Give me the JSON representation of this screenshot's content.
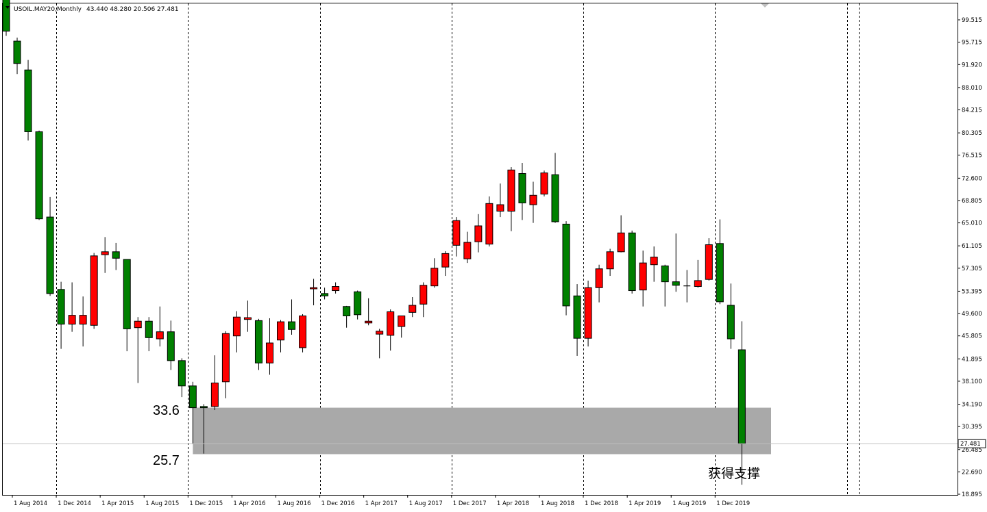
{
  "chart_data": {
    "type": "candlestick",
    "title": "USOIL.MAY20,Monthly",
    "ohlc_readout": "43.440 48.280 20.506 27.481",
    "last_price_label": "27.481",
    "ylim": [
      18.0,
      101.5
    ],
    "y_ticks": [
      "99.515",
      "95.715",
      "91.920",
      "88.010",
      "84.215",
      "80.305",
      "76.515",
      "72.600",
      "68.805",
      "65.010",
      "61.105",
      "57.305",
      "53.395",
      "49.600",
      "45.805",
      "41.895",
      "38.100",
      "34.190",
      "30.395",
      "26.485",
      "22.690",
      "18.895"
    ],
    "x_ticks": [
      "1 Aug 2014",
      "1 Dec 2014",
      "1 Apr 2015",
      "1 Aug 2015",
      "1 Dec 2015",
      "1 Apr 2016",
      "1 Aug 2016",
      "1 Dec 2016",
      "1 Apr 2017",
      "1 Aug 2017",
      "1 Dec 2017",
      "1 Apr 2018",
      "1 Aug 2018",
      "1 Dec 2018",
      "1 Apr 2019",
      "1 Aug 2019",
      "1 Dec 2019"
    ],
    "grid": "vertical dashed separators every 12 months",
    "bull_color": "#ff0000",
    "bear_color": "#008000",
    "support_zone": {
      "low": 25.7,
      "high": 33.6,
      "low_label": "25.7",
      "high_label": "33.6",
      "color": "#a9a9a9",
      "start": "Jan 2016",
      "end": "Apr 2020"
    },
    "annotation": "获得支撑",
    "candles": [
      {
        "d": "Jul 2014",
        "o": 104.0,
        "h": 105.5,
        "l": 96.8,
        "c": 97.6
      },
      {
        "d": "Aug 2014",
        "o": 95.9,
        "h": 96.5,
        "l": 90.3,
        "c": 92.1
      },
      {
        "d": "Sep 2014",
        "o": 91.0,
        "h": 92.7,
        "l": 79.0,
        "c": 80.5
      },
      {
        "d": "Oct 2014",
        "o": 80.5,
        "h": 80.7,
        "l": 65.5,
        "c": 65.7
      },
      {
        "d": "Nov 2014",
        "o": 66.0,
        "h": 69.4,
        "l": 52.6,
        "c": 53.0
      },
      {
        "d": "Dec 2014",
        "o": 53.7,
        "h": 55.0,
        "l": 43.6,
        "c": 47.8
      },
      {
        "d": "Jan 2015",
        "o": 47.8,
        "h": 54.9,
        "l": 46.5,
        "c": 49.3
      },
      {
        "d": "Feb 2015",
        "o": 47.8,
        "h": 52.5,
        "l": 44.0,
        "c": 49.3
      },
      {
        "d": "Mar 2015",
        "o": 47.6,
        "h": 59.9,
        "l": 47.0,
        "c": 59.4
      },
      {
        "d": "Apr 2015",
        "o": 59.6,
        "h": 62.6,
        "l": 56.5,
        "c": 60.1
      },
      {
        "d": "May 2015",
        "o": 60.1,
        "h": 61.6,
        "l": 57.0,
        "c": 59.0
      },
      {
        "d": "Jun 2015",
        "o": 58.8,
        "h": 58.8,
        "l": 43.2,
        "c": 47.0
      },
      {
        "d": "Jul 2015",
        "o": 47.2,
        "h": 49.0,
        "l": 37.8,
        "c": 48.3
      },
      {
        "d": "Aug 2015",
        "o": 48.3,
        "h": 49.0,
        "l": 43.2,
        "c": 45.5
      },
      {
        "d": "Sep 2015",
        "o": 45.3,
        "h": 50.8,
        "l": 44.0,
        "c": 46.5
      },
      {
        "d": "Oct 2015",
        "o": 46.5,
        "h": 48.4,
        "l": 40.0,
        "c": 41.6
      },
      {
        "d": "Nov 2015",
        "o": 41.6,
        "h": 42.0,
        "l": 35.4,
        "c": 37.3
      },
      {
        "d": "Dec 2015",
        "o": 37.3,
        "h": 38.0,
        "l": 27.5,
        "c": 33.6
      },
      {
        "d": "Jan 2016",
        "o": 33.8,
        "h": 34.2,
        "l": 25.8,
        "c": 33.6
      },
      {
        "d": "Feb 2016",
        "o": 33.8,
        "h": 42.5,
        "l": 33.2,
        "c": 37.8
      },
      {
        "d": "Mar 2016",
        "o": 38.0,
        "h": 46.6,
        "l": 35.2,
        "c": 46.2
      },
      {
        "d": "Apr 2016",
        "o": 45.8,
        "h": 50.0,
        "l": 43.0,
        "c": 49.0
      },
      {
        "d": "May 2016",
        "o": 48.6,
        "h": 51.8,
        "l": 46.5,
        "c": 48.9
      },
      {
        "d": "Jun 2016",
        "o": 48.4,
        "h": 48.7,
        "l": 40.0,
        "c": 41.2
      },
      {
        "d": "Jul 2016",
        "o": 41.2,
        "h": 48.8,
        "l": 39.2,
        "c": 44.6
      },
      {
        "d": "Aug 2016",
        "o": 45.1,
        "h": 48.5,
        "l": 43.0,
        "c": 48.2
      },
      {
        "d": "Sep 2016",
        "o": 48.2,
        "h": 52.0,
        "l": 46.0,
        "c": 46.9
      },
      {
        "d": "Oct 2016",
        "o": 43.8,
        "h": 49.5,
        "l": 43.0,
        "c": 49.2
      },
      {
        "d": "Nov 2016",
        "o": 53.8,
        "h": 55.5,
        "l": 51.0,
        "c": 54.0
      },
      {
        "d": "Dec 2016",
        "o": 53.0,
        "h": 54.0,
        "l": 52.0,
        "c": 52.6
      },
      {
        "d": "Jan 2017",
        "o": 53.5,
        "h": 54.9,
        "l": 53.0,
        "c": 54.2
      },
      {
        "d": "Feb 2017",
        "o": 50.8,
        "h": 50.9,
        "l": 47.2,
        "c": 49.2
      },
      {
        "d": "Mar 2017",
        "o": 53.3,
        "h": 53.5,
        "l": 48.6,
        "c": 49.4
      },
      {
        "d": "Apr 2017",
        "o": 48.0,
        "h": 52.2,
        "l": 47.6,
        "c": 48.3
      },
      {
        "d": "May 2017",
        "o": 46.1,
        "h": 47.0,
        "l": 42.0,
        "c": 46.6
      },
      {
        "d": "Jun 2017",
        "o": 45.9,
        "h": 50.3,
        "l": 43.3,
        "c": 49.9
      },
      {
        "d": "Jul 2017",
        "o": 47.4,
        "h": 49.0,
        "l": 45.5,
        "c": 49.2
      },
      {
        "d": "Aug 2017",
        "o": 49.8,
        "h": 52.4,
        "l": 49.0,
        "c": 51.0
      },
      {
        "d": "Sep 2017",
        "o": 51.2,
        "h": 54.9,
        "l": 49.0,
        "c": 54.4
      },
      {
        "d": "Oct 2017",
        "o": 54.3,
        "h": 59.0,
        "l": 54.0,
        "c": 57.3
      },
      {
        "d": "Nov 2017",
        "o": 57.5,
        "h": 60.2,
        "l": 56.0,
        "c": 59.8
      },
      {
        "d": "Dec 2017",
        "o": 61.2,
        "h": 66.0,
        "l": 59.3,
        "c": 65.4
      },
      {
        "d": "Jan 2018",
        "o": 58.9,
        "h": 63.5,
        "l": 58.2,
        "c": 61.7
      },
      {
        "d": "Feb 2018",
        "o": 61.8,
        "h": 66.5,
        "l": 60.0,
        "c": 64.5
      },
      {
        "d": "Mar 2018",
        "o": 61.4,
        "h": 69.5,
        "l": 61.0,
        "c": 68.3
      },
      {
        "d": "Apr 2018",
        "o": 67.0,
        "h": 71.7,
        "l": 66.0,
        "c": 68.1
      },
      {
        "d": "May 2018",
        "o": 67.0,
        "h": 74.5,
        "l": 63.6,
        "c": 74.0
      },
      {
        "d": "Jun 2018",
        "o": 73.4,
        "h": 75.2,
        "l": 65.5,
        "c": 68.4
      },
      {
        "d": "Jul 2018",
        "o": 68.1,
        "h": 72.0,
        "l": 65.0,
        "c": 69.7
      },
      {
        "d": "Aug 2018",
        "o": 69.9,
        "h": 73.9,
        "l": 69.5,
        "c": 73.5
      },
      {
        "d": "Sep 2018",
        "o": 73.2,
        "h": 76.9,
        "l": 65.0,
        "c": 65.2
      },
      {
        "d": "Oct 2018",
        "o": 64.8,
        "h": 65.3,
        "l": 49.3,
        "c": 50.9
      },
      {
        "d": "Nov 2018",
        "o": 52.6,
        "h": 54.6,
        "l": 42.4,
        "c": 45.4
      },
      {
        "d": "Dec 2018",
        "o": 45.4,
        "h": 55.2,
        "l": 44.0,
        "c": 54.0
      },
      {
        "d": "Jan 2019",
        "o": 54.0,
        "h": 57.9,
        "l": 51.5,
        "c": 57.2
      },
      {
        "d": "Feb 2019",
        "o": 57.2,
        "h": 60.6,
        "l": 56.0,
        "c": 60.1
      },
      {
        "d": "Mar 2019",
        "o": 60.1,
        "h": 66.3,
        "l": 60.0,
        "c": 63.3
      },
      {
        "d": "Apr 2019",
        "o": 63.3,
        "h": 63.7,
        "l": 53.0,
        "c": 53.5
      },
      {
        "d": "May 2019",
        "o": 53.6,
        "h": 60.3,
        "l": 50.8,
        "c": 58.2
      },
      {
        "d": "Jun 2019",
        "o": 57.9,
        "h": 61.0,
        "l": 55.0,
        "c": 59.2
      },
      {
        "d": "Jul 2019",
        "o": 57.7,
        "h": 57.9,
        "l": 50.8,
        "c": 55.0
      },
      {
        "d": "Aug 2019",
        "o": 55.0,
        "h": 63.2,
        "l": 53.3,
        "c": 54.4
      },
      {
        "d": "Sep 2019",
        "o": 54.3,
        "h": 57.0,
        "l": 51.5,
        "c": 54.2
      },
      {
        "d": "Oct 2019",
        "o": 54.2,
        "h": 58.7,
        "l": 54.0,
        "c": 55.2
      },
      {
        "d": "Nov 2019",
        "o": 55.4,
        "h": 62.4,
        "l": 55.2,
        "c": 61.3
      },
      {
        "d": "Dec 2019",
        "o": 61.5,
        "h": 65.6,
        "l": 51.2,
        "c": 51.6
      },
      {
        "d": "Jan 2020",
        "o": 51.0,
        "h": 54.7,
        "l": 43.6,
        "c": 45.3
      },
      {
        "d": "Feb 2020",
        "o": 43.44,
        "h": 48.28,
        "l": 20.506,
        "c": 27.481
      }
    ]
  }
}
